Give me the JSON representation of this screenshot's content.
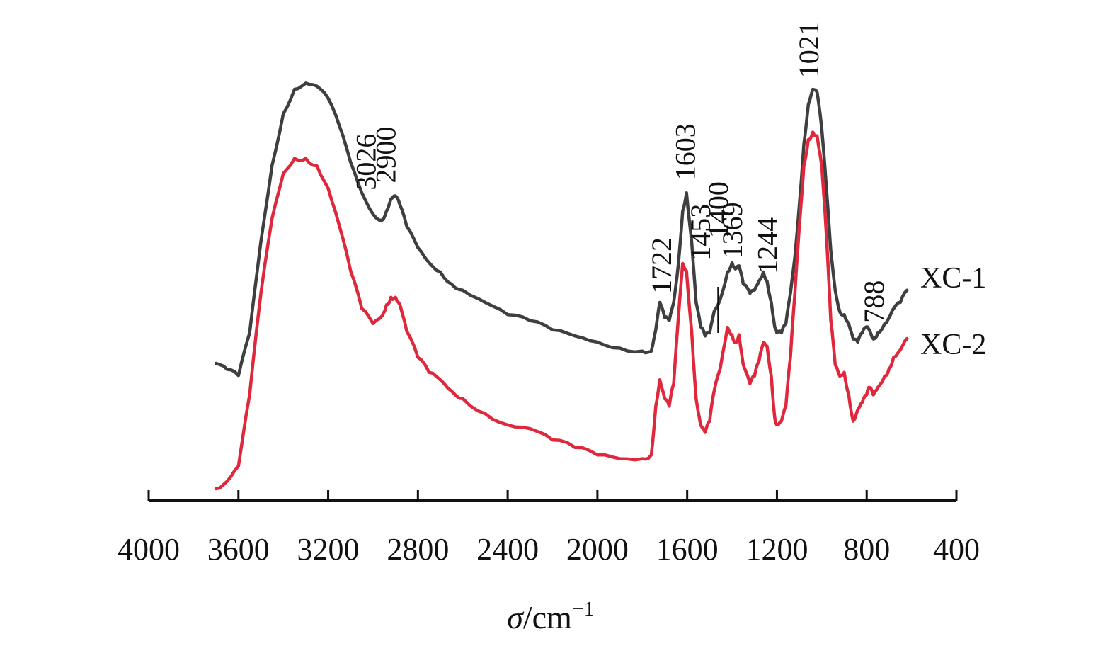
{
  "chart_data": {
    "type": "line",
    "xlabel": "σ/cm⁻¹",
    "xlabel_parts": {
      "sigma": "σ",
      "unit": "/cm",
      "exponent": "−1"
    },
    "xlim": [
      4000,
      400
    ],
    "x_reversed": true,
    "xticks": [
      4000,
      3600,
      3200,
      2800,
      2400,
      2000,
      1600,
      1200,
      800,
      400
    ],
    "y_axis_visible": false,
    "grid": false,
    "legend_placement": "right-end-of-lines",
    "series": [
      {
        "name": "XC-1",
        "color": "#3f3f3f",
        "x": [
          3700,
          3650,
          3600,
          3550,
          3500,
          3450,
          3400,
          3350,
          3300,
          3250,
          3200,
          3150,
          3100,
          3050,
          3000,
          2960,
          2940,
          2920,
          2900,
          2880,
          2850,
          2800,
          2750,
          2700,
          2650,
          2600,
          2500,
          2400,
          2300,
          2200,
          2100,
          2000,
          1900,
          1800,
          1760,
          1740,
          1722,
          1700,
          1680,
          1660,
          1640,
          1620,
          1603,
          1580,
          1560,
          1540,
          1520,
          1500,
          1480,
          1453,
          1420,
          1400,
          1385,
          1369,
          1350,
          1320,
          1300,
          1280,
          1260,
          1244,
          1225,
          1210,
          1200,
          1180,
          1160,
          1140,
          1120,
          1100,
          1080,
          1060,
          1040,
          1021,
          1000,
          980,
          960,
          940,
          920,
          900,
          880,
          860,
          840,
          820,
          800,
          788,
          770,
          750,
          720,
          700,
          680,
          650,
          620
        ],
        "y": [
          10,
          8,
          6,
          20,
          50,
          75,
          92,
          100,
          102,
          101,
          97,
          88,
          76,
          66,
          59,
          57,
          60,
          64,
          65,
          62,
          55,
          48,
          43,
          40,
          36,
          34,
          30,
          26,
          24,
          21,
          19,
          17,
          15,
          14,
          14,
          21,
          30,
          25,
          24,
          30,
          42,
          60,
          66,
          50,
          30,
          22,
          19,
          20,
          27,
          31,
          40,
          43,
          41,
          42,
          36,
          33,
          34,
          37,
          40,
          37,
          30,
          22,
          20,
          20,
          23,
          33,
          45,
          62,
          82,
          95,
          100,
          99,
          87,
          68,
          47,
          34,
          27,
          26,
          23,
          18,
          17,
          20,
          22,
          21,
          18,
          20,
          23,
          25,
          28,
          30,
          34
        ]
      },
      {
        "name": "XC-2",
        "color": "#e0283c",
        "x": [
          3700,
          3650,
          3600,
          3550,
          3500,
          3450,
          3400,
          3350,
          3300,
          3250,
          3200,
          3150,
          3100,
          3050,
          3000,
          2960,
          2940,
          2920,
          2900,
          2880,
          2850,
          2800,
          2750,
          2700,
          2650,
          2600,
          2500,
          2400,
          2300,
          2200,
          2100,
          2000,
          1900,
          1800,
          1760,
          1740,
          1722,
          1700,
          1680,
          1660,
          1640,
          1620,
          1603,
          1580,
          1560,
          1540,
          1520,
          1500,
          1480,
          1453,
          1420,
          1400,
          1385,
          1369,
          1350,
          1320,
          1300,
          1280,
          1260,
          1244,
          1225,
          1210,
          1200,
          1180,
          1160,
          1140,
          1120,
          1100,
          1080,
          1060,
          1040,
          1021,
          1000,
          980,
          960,
          940,
          920,
          900,
          880,
          860,
          840,
          820,
          800,
          788,
          770,
          750,
          720,
          700,
          680,
          650,
          620
        ],
        "y": [
          0,
          2,
          6,
          25,
          52,
          72,
          84,
          88,
          88,
          86,
          80,
          70,
          58,
          48,
          44,
          46,
          49,
          51,
          51,
          49,
          42,
          35,
          31,
          29,
          26,
          24,
          20,
          17,
          16,
          13,
          11,
          9,
          8,
          8,
          9,
          22,
          29,
          24,
          22,
          28,
          45,
          60,
          58,
          42,
          24,
          17,
          15,
          18,
          26,
          32,
          43,
          41,
          39,
          41,
          33,
          28,
          30,
          34,
          39,
          38,
          30,
          19,
          17,
          18,
          22,
          35,
          52,
          70,
          86,
          93,
          95,
          94,
          86,
          68,
          45,
          33,
          30,
          31,
          25,
          18,
          21,
          23,
          25,
          27,
          25,
          27,
          30,
          32,
          35,
          37,
          40
        ]
      }
    ],
    "annotations": [
      {
        "text": "3026",
        "x": 3026,
        "series": "XC-1"
      },
      {
        "text": "2900",
        "x": 2900,
        "series": "XC-1"
      },
      {
        "text": "1722",
        "x": 1722,
        "series": "XC-1"
      },
      {
        "text": "1603",
        "x": 1603,
        "series": "XC-1"
      },
      {
        "text": "1453",
        "x": 1453,
        "series": "XC-1"
      },
      {
        "text": "1400",
        "x": 1400,
        "series": "XC-1"
      },
      {
        "text": "1369",
        "x": 1369,
        "series": "XC-1"
      },
      {
        "text": "1244",
        "x": 1244,
        "series": "XC-1"
      },
      {
        "text": "1021",
        "x": 1021,
        "series": "XC-1"
      },
      {
        "text": "788",
        "x": 788,
        "series": "XC-1"
      }
    ]
  }
}
